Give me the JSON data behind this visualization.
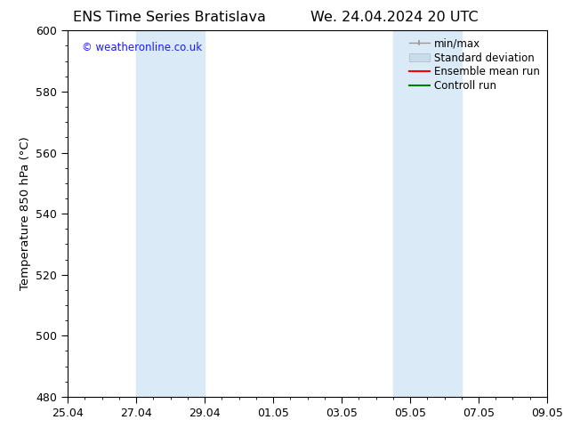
{
  "title_left": "ENS Time Series Bratislava",
  "title_right": "We. 24.04.2024 20 UTC",
  "ylabel": "Temperature 850 hPa (°C)",
  "ylim": [
    480,
    600
  ],
  "yticks": [
    480,
    500,
    520,
    540,
    560,
    580,
    600
  ],
  "xtick_labels": [
    "25.04",
    "27.04",
    "29.04",
    "01.05",
    "03.05",
    "05.05",
    "07.05",
    "09.05"
  ],
  "xtick_positions": [
    0,
    2,
    4,
    6,
    8,
    10,
    12,
    14
  ],
  "xlim": [
    0,
    14
  ],
  "shaded_regions": [
    {
      "x_start": 2,
      "x_end": 4,
      "color": "#daeaf7"
    },
    {
      "x_start": 9.5,
      "x_end": 11.5,
      "color": "#daeaf7"
    }
  ],
  "watermark_text": "© weatheronline.co.uk",
  "watermark_color": "#1a1aff",
  "legend_items": [
    {
      "label": "min/max",
      "color": "#999999"
    },
    {
      "label": "Standard deviation",
      "color": "#c8dcea"
    },
    {
      "label": "Ensemble mean run",
      "color": "#ff0000"
    },
    {
      "label": "Controll run",
      "color": "#008000"
    }
  ],
  "bg_color": "#ffffff",
  "title_fontsize": 11.5,
  "label_fontsize": 9.5,
  "tick_fontsize": 9,
  "legend_fontsize": 8.5,
  "watermark_fontsize": 8.5
}
